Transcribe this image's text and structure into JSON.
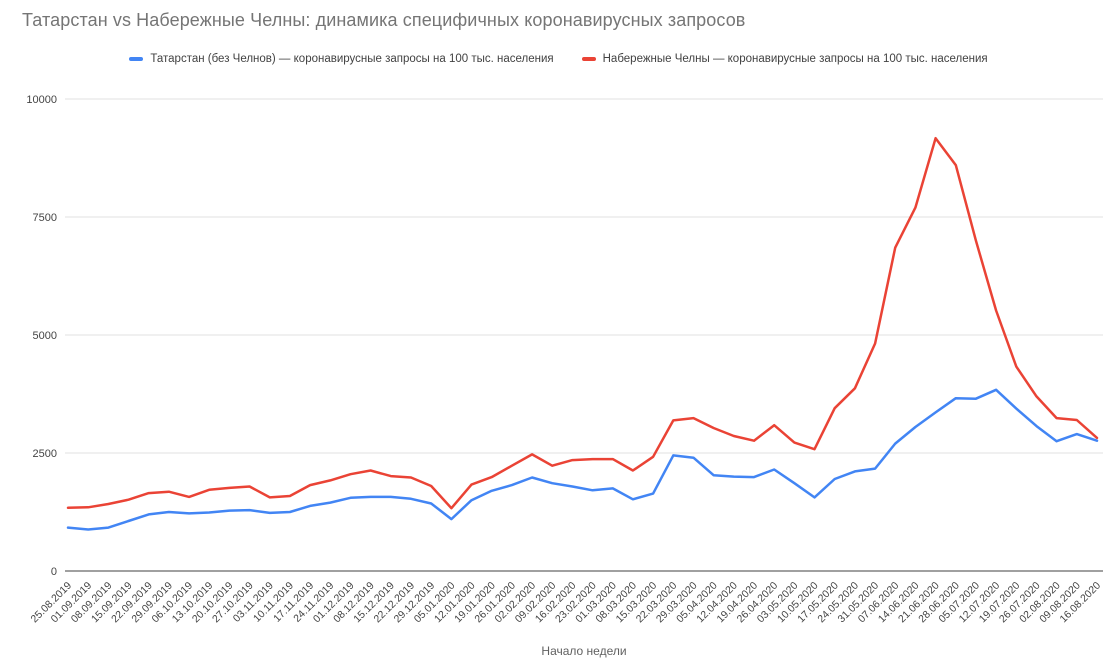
{
  "title": "Татарстан vs Набережные Челны: динамика специфичных коронавирусных запросов",
  "legend": {
    "items": [
      {
        "label": "Татарстан (без Челнов) — коронавирусные запросы на 100 тыс. населения",
        "color": "#4285f4"
      },
      {
        "label": "Набережные Челны — коронавирусные запросы на 100 тыс. населения",
        "color": "#ea4335"
      }
    ]
  },
  "x_axis_title": "Начало недели",
  "colors": {
    "grid": "#e0e0e0",
    "baseline": "#424242",
    "tick_label": "#444444",
    "axis_title": "#616161",
    "title": "#757575"
  },
  "chart_data": {
    "type": "line",
    "title": "Татарстан vs Набережные Челны: динамика специфичных коронавирусных запросов",
    "xlabel": "Начало недели",
    "ylabel": "",
    "ylim": [
      0,
      10000
    ],
    "yticks": [
      0,
      2500,
      5000,
      7500,
      10000
    ],
    "grid": true,
    "legend_position": "top",
    "x": [
      "25.08.2019",
      "01.09.2019",
      "08.09.2019",
      "15.09.2019",
      "22.09.2019",
      "29.09.2019",
      "06.10.2019",
      "13.10.2019",
      "20.10.2019",
      "27.10.2019",
      "03.11.2019",
      "10.11.2019",
      "17.11.2019",
      "24.11.2019",
      "01.12.2019",
      "08.12.2019",
      "15.12.2019",
      "22.12.2019",
      "29.12.2019",
      "05.01.2020",
      "12.01.2020",
      "19.01.2020",
      "26.01.2020",
      "02.02.2020",
      "09.02.2020",
      "16.02.2020",
      "23.02.2020",
      "01.03.2020",
      "08.03.2020",
      "15.03.2020",
      "22.03.2020",
      "29.03.2020",
      "05.04.2020",
      "12.04.2020",
      "19.04.2020",
      "26.04.2020",
      "03.05.2020",
      "10.05.2020",
      "17.05.2020",
      "24.05.2020",
      "31.05.2020",
      "07.06.2020",
      "14.06.2020",
      "21.06.2020",
      "28.06.2020",
      "05.07.2020",
      "12.07.2020",
      "19.07.2020",
      "26.07.2020",
      "02.08.2020",
      "09.08.2020",
      "16.08.2020"
    ],
    "series": [
      {
        "name": "Татарстан (без Челнов) — коронавирусные запросы на 100 тыс. населения",
        "color": "#4285f4",
        "values": [
          920,
          880,
          920,
          1060,
          1200,
          1250,
          1220,
          1240,
          1280,
          1290,
          1230,
          1250,
          1380,
          1450,
          1550,
          1570,
          1570,
          1530,
          1430,
          1100,
          1500,
          1700,
          1820,
          1980,
          1860,
          1790,
          1710,
          1750,
          1520,
          1640,
          2450,
          2400,
          2030,
          2000,
          1990,
          2150,
          1860,
          1560,
          1950,
          2110,
          2170,
          2700,
          3050,
          3360,
          3660,
          3650,
          3840,
          3440,
          3070,
          2750,
          2900,
          2760
        ]
      },
      {
        "name": "Набережные Челны — коронавирусные запросы на 100 тыс. населения",
        "color": "#ea4335",
        "values": [
          1340,
          1350,
          1420,
          1510,
          1650,
          1680,
          1570,
          1720,
          1760,
          1790,
          1560,
          1590,
          1820,
          1920,
          2050,
          2130,
          2010,
          1980,
          1800,
          1330,
          1830,
          1990,
          2230,
          2470,
          2230,
          2350,
          2370,
          2370,
          2130,
          2420,
          3190,
          3240,
          3030,
          2860,
          2760,
          3090,
          2720,
          2580,
          3450,
          3870,
          4820,
          6850,
          7700,
          9170,
          8600,
          7000,
          5520,
          4330,
          3700,
          3240,
          3200,
          2820
        ]
      }
    ]
  }
}
